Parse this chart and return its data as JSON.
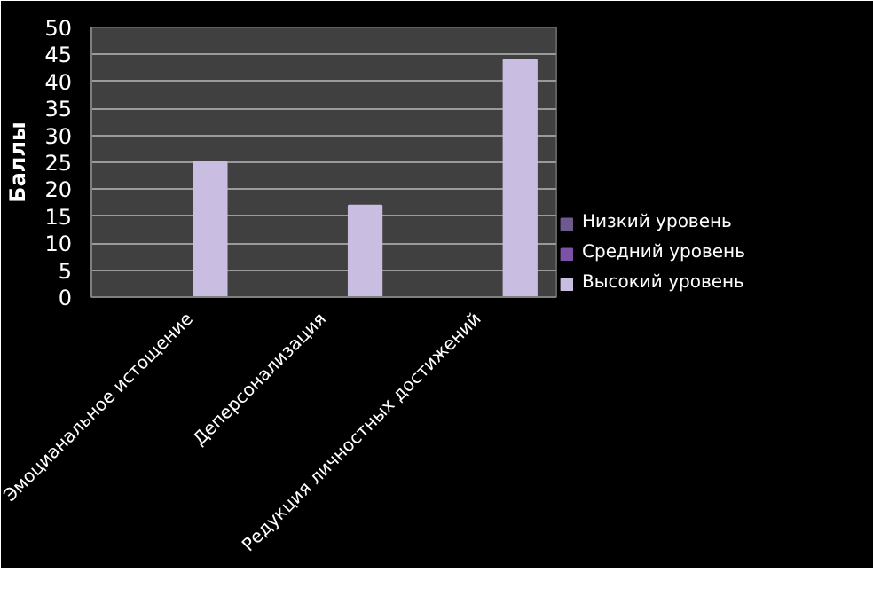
{
  "chart_data": {
    "type": "bar",
    "ylabel": "Баллы",
    "categories": [
      "Эмоцианальное истощение",
      "Деперсонализация",
      "Редукция личностных достижений"
    ],
    "series": [
      {
        "name": "Низкий уровень",
        "color": "#6e5a8e",
        "values": [
          null,
          null,
          null
        ]
      },
      {
        "name": "Средний уровень",
        "color": "#7b52a6",
        "values": [
          null,
          null,
          null
        ]
      },
      {
        "name": "Высокий уровень",
        "color": "#c9bde2",
        "values": [
          25,
          17,
          44
        ]
      }
    ],
    "ylim": [
      0,
      50
    ],
    "yticks": [
      0,
      5,
      10,
      15,
      20,
      25,
      30,
      35,
      40,
      45,
      50
    ],
    "grid": "y",
    "legend": "right"
  }
}
